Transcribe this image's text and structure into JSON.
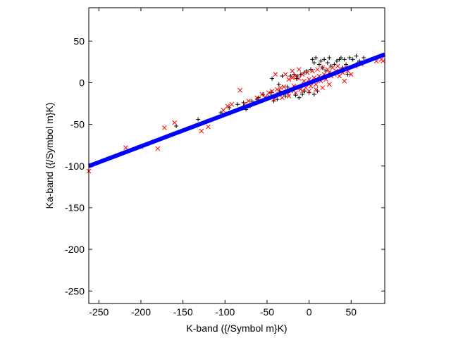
{
  "chart_data": {
    "type": "scatter",
    "title": "",
    "xlabel": "K-band ({/Symbol m}K)",
    "ylabel": "Ka-band ({/Symbol m}K)",
    "xlim": [
      -262,
      90
    ],
    "ylim": [
      -265,
      90
    ],
    "x_ticks": [
      -250,
      -200,
      -150,
      -100,
      -50,
      0,
      50
    ],
    "y_ticks": [
      -250,
      -200,
      -150,
      -100,
      -50,
      0,
      50
    ],
    "x_tick_labels": [
      "-250",
      "-200",
      "-150",
      "-100",
      "-50",
      "0",
      "50"
    ],
    "y_tick_labels": [
      "-250",
      "-200",
      "-150",
      "-100",
      "-50",
      "0",
      "50"
    ],
    "grid": false,
    "legend": "none",
    "series": [
      {
        "marker": "plus",
        "color": "#000000",
        "points": [
          [
            -158,
            -52
          ],
          [
            -132,
            -44
          ],
          [
            -105,
            -36
          ],
          [
            -95,
            -30
          ],
          [
            -85,
            -26
          ],
          [
            -78,
            -24
          ],
          [
            -75,
            -32
          ],
          [
            -68,
            -22
          ],
          [
            -60,
            -18
          ],
          [
            -55,
            -14
          ],
          [
            -52,
            -20
          ],
          [
            -48,
            -17
          ],
          [
            -45,
            -12
          ],
          [
            -42,
            -22
          ],
          [
            -40,
            -16
          ],
          [
            -38,
            -20
          ],
          [
            -35,
            -10
          ],
          [
            -32,
            8
          ],
          [
            -30,
            -14
          ],
          [
            -28,
            -16
          ],
          [
            -26,
            -5
          ],
          [
            -25,
            -12
          ],
          [
            -22,
            8
          ],
          [
            -20,
            -10
          ],
          [
            -18,
            10
          ],
          [
            -16,
            -15
          ],
          [
            -15,
            5
          ],
          [
            -12,
            -18
          ],
          [
            -10,
            10
          ],
          [
            -8,
            -14
          ],
          [
            -6,
            12
          ],
          [
            -5,
            -10
          ],
          [
            -3,
            14
          ],
          [
            0,
            -12
          ],
          [
            2,
            16
          ],
          [
            4,
            28
          ],
          [
            6,
            24
          ],
          [
            8,
            30
          ],
          [
            10,
            -10
          ],
          [
            12,
            22
          ],
          [
            14,
            26
          ],
          [
            16,
            18
          ],
          [
            18,
            28
          ],
          [
            20,
            14
          ],
          [
            22,
            24
          ],
          [
            24,
            30
          ],
          [
            26,
            20
          ],
          [
            28,
            10
          ],
          [
            30,
            22
          ],
          [
            33,
            26
          ],
          [
            36,
            28
          ],
          [
            38,
            30
          ],
          [
            40,
            18
          ],
          [
            42,
            28
          ],
          [
            44,
            22
          ],
          [
            48,
            30
          ],
          [
            52,
            28
          ],
          [
            56,
            32
          ],
          [
            60,
            26
          ],
          [
            65,
            30
          ],
          [
            -70,
            -28
          ],
          [
            -62,
            -20
          ],
          [
            -44,
            5
          ],
          [
            -36,
            -2
          ],
          [
            -14,
            8
          ],
          [
            6,
            -14
          ],
          [
            34,
            12
          ],
          [
            46,
            10
          ],
          [
            58,
            24
          ]
        ]
      },
      {
        "marker": "x",
        "color": "#ff0000",
        "points": [
          [
            -262,
            -106
          ],
          [
            -260,
            -99
          ],
          [
            -218,
            -78
          ],
          [
            -200,
            -77
          ],
          [
            -180,
            -79
          ],
          [
            -172,
            -54
          ],
          [
            -160,
            -48
          ],
          [
            -128,
            -58
          ],
          [
            -120,
            -53
          ],
          [
            -102,
            -33
          ],
          [
            -97,
            -28
          ],
          [
            -92,
            -26
          ],
          [
            -82,
            -9
          ],
          [
            -77,
            -26
          ],
          [
            -72,
            -22
          ],
          [
            -62,
            -18
          ],
          [
            -56,
            -14
          ],
          [
            -52,
            -17
          ],
          [
            -48,
            -12
          ],
          [
            -44,
            -10
          ],
          [
            -42,
            -20
          ],
          [
            -38,
            -8
          ],
          [
            -36,
            -14
          ],
          [
            -34,
            -6
          ],
          [
            -30,
            -5
          ],
          [
            -28,
            10
          ],
          [
            -26,
            -12
          ],
          [
            -24,
            4
          ],
          [
            -22,
            -8
          ],
          [
            -20,
            6
          ],
          [
            -18,
            -4
          ],
          [
            -16,
            8
          ],
          [
            -14,
            -6
          ],
          [
            -12,
            5
          ],
          [
            -10,
            -8
          ],
          [
            -8,
            10
          ],
          [
            -6,
            2
          ],
          [
            -4,
            -6
          ],
          [
            -2,
            12
          ],
          [
            0,
            4
          ],
          [
            2,
            -4
          ],
          [
            4,
            14
          ],
          [
            6,
            6
          ],
          [
            8,
            -2
          ],
          [
            10,
            16
          ],
          [
            12,
            8
          ],
          [
            14,
            2
          ],
          [
            16,
            18
          ],
          [
            18,
            10
          ],
          [
            20,
            4
          ],
          [
            22,
            16
          ],
          [
            24,
            12
          ],
          [
            26,
            8
          ],
          [
            28,
            18
          ],
          [
            30,
            10
          ],
          [
            32,
            14
          ],
          [
            34,
            20
          ],
          [
            36,
            8
          ],
          [
            38,
            16
          ],
          [
            40,
            12
          ],
          [
            42,
            2
          ],
          [
            44,
            18
          ],
          [
            46,
            14
          ],
          [
            50,
            10
          ],
          [
            55,
            20
          ],
          [
            62,
            22
          ],
          [
            80,
            26
          ],
          [
            86,
            28
          ],
          [
            88,
            26
          ],
          [
            -40,
            10
          ],
          [
            -32,
            -18
          ],
          [
            -24,
            -16
          ],
          [
            -16,
            -12
          ],
          [
            -8,
            -10
          ],
          [
            0,
            -10
          ],
          [
            8,
            -8
          ],
          [
            16,
            -6
          ],
          [
            24,
            -2
          ],
          [
            -20,
            14
          ],
          [
            -12,
            16
          ]
        ]
      },
      {
        "marker": "line",
        "color": "#0000ff",
        "points": [
          [
            -262,
            -100
          ],
          [
            90,
            34
          ]
        ]
      }
    ]
  }
}
